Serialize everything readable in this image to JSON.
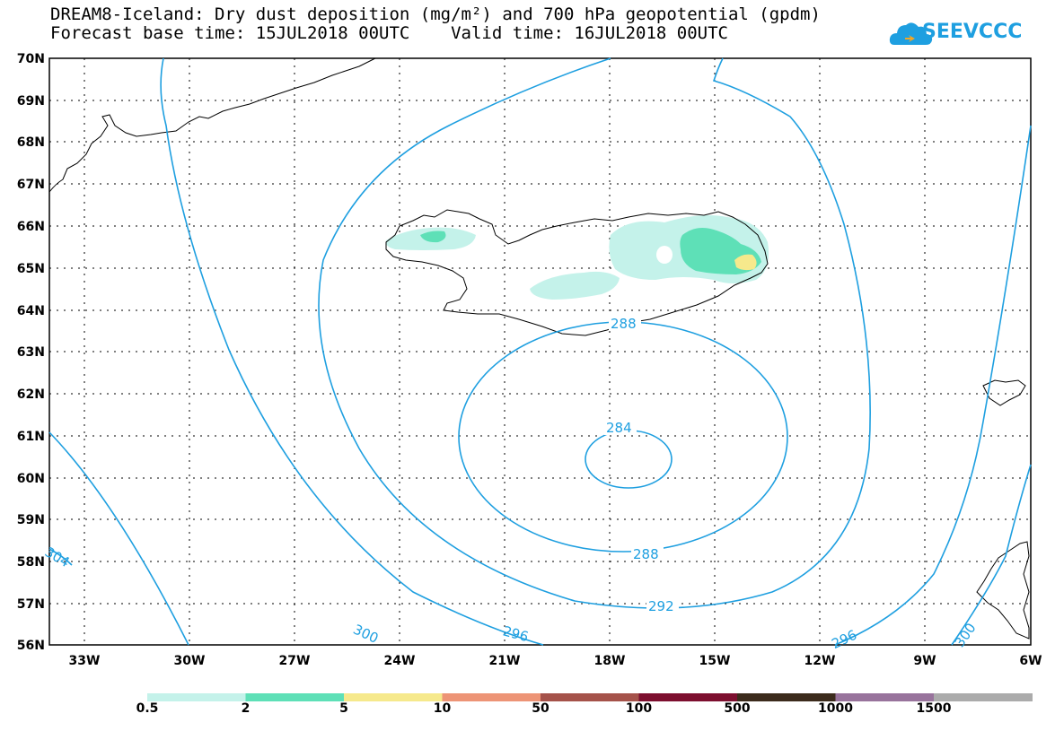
{
  "header": {
    "title_line1": "DREAM8-Iceland: Dry dust deposition (mg/m²) and 700 hPa geopotential (gpdm)",
    "title_line2": "Forecast base time: 15JUL2018 00UTC    Valid time: 16JUL2018 00UTC"
  },
  "logo": {
    "text": "SEEVCCC",
    "icon": "cloud-icon",
    "color": "#1e9fe0"
  },
  "axes": {
    "lat_labels": [
      "70N",
      "69N",
      "68N",
      "67N",
      "66N",
      "65N",
      "64N",
      "63N",
      "62N",
      "61N",
      "60N",
      "59N",
      "58N",
      "57N",
      "56N"
    ],
    "lon_labels": [
      "33W",
      "30W",
      "27W",
      "24W",
      "21W",
      "18W",
      "15W",
      "12W",
      "9W",
      "6W"
    ],
    "lat_range": [
      56,
      70
    ],
    "lon_range": [
      -34.5,
      -6
    ]
  },
  "contours": {
    "color": "#1e9fe0",
    "labels": [
      "288",
      "284",
      "288",
      "292",
      "296",
      "300",
      "304",
      "296",
      "300"
    ]
  },
  "colorbar": {
    "labels": [
      "0.5",
      "2",
      "5",
      "10",
      "50",
      "100",
      "500",
      "1000",
      "1500"
    ],
    "colors": [
      "#c4f2ea",
      "#5ee0b7",
      "#f6e98c",
      "#ed9476",
      "#a5524a",
      "#7d0f2f",
      "#3c2b1c",
      "#98739c",
      "#ababab"
    ]
  }
}
